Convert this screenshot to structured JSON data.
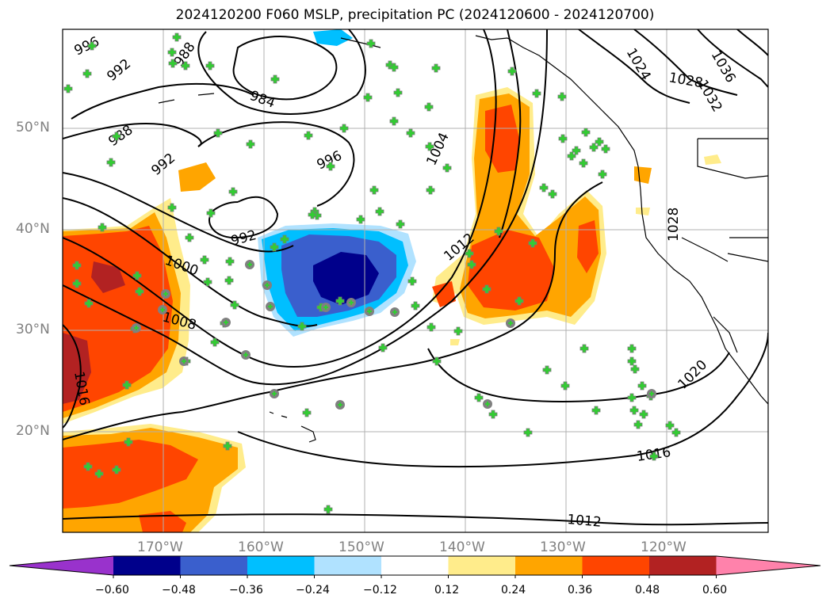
{
  "title": "2024120200 F060 MSLP, precipitation PC (2024120600 - 2024120700)",
  "lat_labels": [
    "50°N",
    "40°N",
    "30°N",
    "20°N"
  ],
  "lon_labels": [
    "170°W",
    "160°W",
    "150°W",
    "140°W",
    "130°W",
    "120°W"
  ],
  "contour_labels": {
    "c992a": "992",
    "c988a": "988",
    "c984": "984",
    "c996a": "996",
    "c992b": "992",
    "c988b": "988",
    "c992c": "992",
    "c996b": "996",
    "c1004": "1004",
    "c1012a": "1012",
    "c1000": "1000",
    "c1008": "1008",
    "c1016a": "1016",
    "c1020": "1020",
    "c1016b": "1016",
    "c1012b": "1012",
    "c1024": "1024",
    "c1028a": "1028",
    "c1032": "1032",
    "c1036": "1036",
    "c1028b": "1028"
  },
  "colorbar": {
    "ticks": [
      "−0.60",
      "−0.48",
      "−0.36",
      "−0.24",
      "−0.12",
      "0.12",
      "0.24",
      "0.36",
      "0.48",
      "0.60"
    ],
    "colors": [
      "#9932cc",
      "#00008b",
      "#3a5fcd",
      "#00bfff",
      "#b0e2ff",
      "#ffffff",
      "#ffec8b",
      "#ffa500",
      "#ff4500",
      "#b22222",
      "#ff82ab"
    ]
  },
  "colors": {
    "precip_light": "#ffec8b",
    "precip_orange": "#ffa500",
    "precip_red": "#ff4500",
    "precip_darkred": "#b22222",
    "neg_light": "#b0e2ff",
    "neg_sky": "#00bfff",
    "neg_blue": "#3a5fcd",
    "neg_navy": "#00008b",
    "marker_green": "#32cd32",
    "marker_gray": "#808080"
  }
}
